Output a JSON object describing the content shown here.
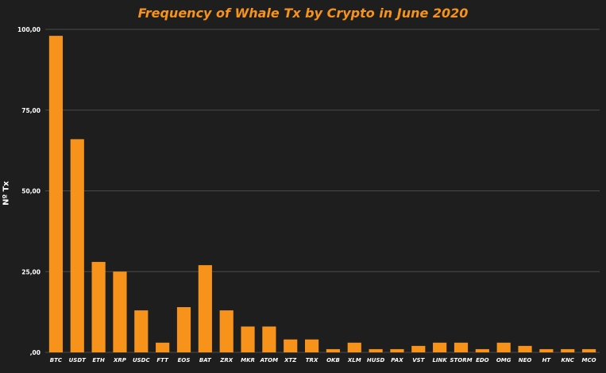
{
  "chart_data": {
    "type": "bar",
    "title": "Frequency of Whale Tx by Crypto in June 2020",
    "xlabel": "",
    "ylabel": "Nº Tx",
    "ylim": [
      0,
      100
    ],
    "yticks": [
      0,
      25,
      50,
      75,
      100
    ],
    "ytick_labels": [
      ",00",
      "25,00",
      "50,00",
      "75,00",
      "100,00"
    ],
    "grid": true,
    "bar_color": "#f7931a",
    "background": "#1e1e1e",
    "categories": [
      "BTC",
      "USDT",
      "ETH",
      "XRP",
      "USDC",
      "FTT",
      "EOS",
      "BAT",
      "ZRX",
      "MKR",
      "ATOM",
      "XTZ",
      "TRX",
      "OKB",
      "XLM",
      "HUSD",
      "PAX",
      "VST",
      "LINK",
      "STORM",
      "EDO",
      "OMG",
      "NEO",
      "HT",
      "KNC",
      "MCO"
    ],
    "values": [
      98,
      66,
      28,
      25,
      13,
      3,
      14,
      27,
      13,
      8,
      8,
      4,
      4,
      1,
      3,
      1,
      1,
      2,
      3,
      3,
      1,
      3,
      2,
      1,
      1,
      1
    ]
  }
}
